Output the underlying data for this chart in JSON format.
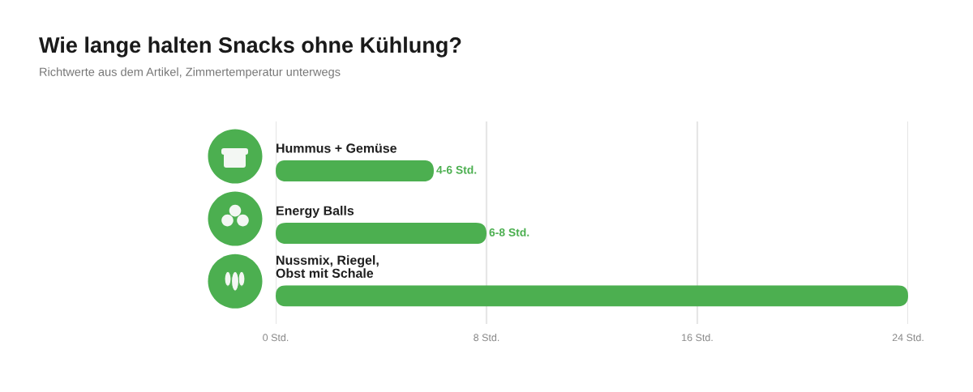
{
  "chart_data": {
    "type": "bar",
    "orientation": "horizontal",
    "title": "Wie lange halten Snacks ohne Kühlung?",
    "subtitle": "Richtwerte aus dem Artikel, Zimmertemperatur unterwegs",
    "categories": [
      "Hummus + Gemüse",
      "Energy Balls",
      "Nussmix, Riegel,\nObst mit Schale"
    ],
    "values": [
      6,
      8,
      24
    ],
    "value_labels": [
      "4-6 Std.",
      "6-8 Std.",
      null
    ],
    "color": "#4caf50",
    "xlim": [
      0,
      24
    ],
    "xticks": [
      {
        "value": 0,
        "label": "0 Std."
      },
      {
        "value": 8,
        "label": "8 Std."
      },
      {
        "value": 16,
        "label": "16 Std."
      },
      {
        "value": 24,
        "label": "24 Std."
      }
    ],
    "grid": "x"
  }
}
